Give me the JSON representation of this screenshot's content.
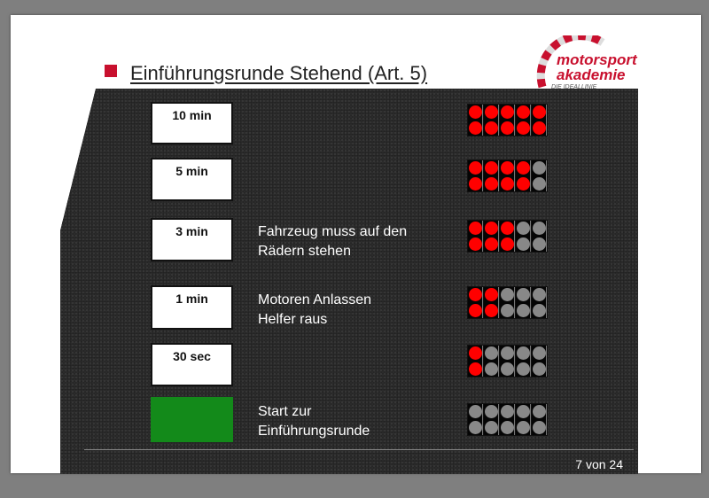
{
  "title": "Einführungsrunde Stehend (Art. 5)",
  "logo": {
    "line1": "motorsport",
    "line2": "akademie",
    "tagline": "DIE IDEALLINIE"
  },
  "colors": {
    "lamp_on": "#ff0000",
    "lamp_off": "#888888",
    "accent": "#c8102e",
    "start": "#138a1a"
  },
  "steps": [
    {
      "label": "10 min",
      "text1": "",
      "text2": "",
      "lit": 5
    },
    {
      "label": "5 min",
      "text1": "",
      "text2": "",
      "lit": 4
    },
    {
      "label": "3 min",
      "text1": "Fahrzeug muss auf den",
      "text2": "Rädern stehen",
      "lit": 3
    },
    {
      "label": "1 min",
      "text1": "Motoren Anlassen",
      "text2": "Helfer raus",
      "lit": 2
    },
    {
      "label": "30 sec",
      "text1": "",
      "text2": "",
      "lit": 1
    },
    {
      "label": "",
      "text1": "Start zur",
      "text2": "Einführungsrunde",
      "lit": 0
    }
  ],
  "page_indicator": "7 von 24"
}
